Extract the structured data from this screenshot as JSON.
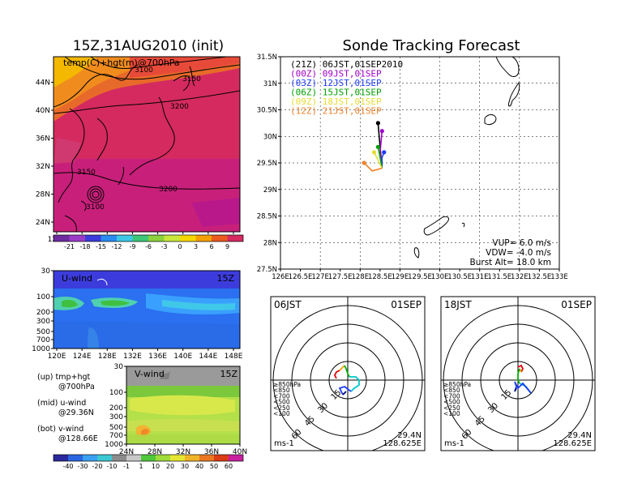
{
  "chart_data": [
    {
      "type": "heatmap",
      "title": "15Z,31AUG2010 (init)",
      "label": "temp(C)+hgt(m)@700hPa",
      "x_ticks": [
        "120E",
        "124E",
        "128E",
        "132E",
        "136E",
        "140E",
        "144E",
        "148E"
      ],
      "y_ticks": [
        "24N",
        "28N",
        "32N",
        "36N",
        "40N",
        "44N"
      ],
      "contours": [
        "3100",
        "3150",
        "3200",
        "3150",
        "3200",
        "3100"
      ],
      "colorbar": [
        "-21",
        "-18",
        "-15",
        "-12",
        "-9",
        "-6",
        "-3",
        "0",
        "3",
        "6",
        "9"
      ]
    },
    {
      "type": "heatmap",
      "label": "U-wind",
      "time": "15Z",
      "x_ticks": [
        "120E",
        "124E",
        "128E",
        "132E",
        "136E",
        "140E",
        "144E",
        "148E"
      ],
      "y_ticks": [
        "30",
        "100",
        "200",
        "300",
        "500",
        "700",
        "1000"
      ]
    },
    {
      "type": "heatmap",
      "label": "V-wind",
      "time": "15Z",
      "x_ticks": [
        "24N",
        "28N",
        "32N",
        "36N",
        "40N"
      ],
      "y_ticks": [
        "30",
        "100",
        "200",
        "300",
        "500",
        "700",
        "1000"
      ],
      "colorbar": [
        "-40",
        "-30",
        "-20",
        "-10",
        "-1",
        "1",
        "10",
        "20",
        "30",
        "40",
        "50",
        "60"
      ]
    },
    {
      "type": "line",
      "title": "Sonde Tracking Forecast",
      "x_ticks": [
        "126E",
        "126.5E",
        "127E",
        "127.5E",
        "128E",
        "128.5E",
        "129E",
        "129.5E",
        "130E",
        "130.5E",
        "131E",
        "131.5E",
        "132E",
        "132.5E",
        "133E"
      ],
      "y_ticks": [
        "27.5N",
        "28N",
        "28.5N",
        "29N",
        "29.5N",
        "30N",
        "30.5N",
        "31N",
        "31.5N"
      ],
      "xlim": [
        126,
        133
      ],
      "ylim": [
        27.5,
        31.5
      ],
      "series": [
        {
          "name": "(21Z)  06JST,01SEP2010",
          "color": "#000000",
          "points": [
            [
              128.55,
              29.4
            ],
            [
              128.5,
              29.8
            ],
            [
              128.45,
              30.25
            ]
          ]
        },
        {
          "name": "(00Z)  09JST,01SEP",
          "color": "#a000c8",
          "points": [
            [
              128.55,
              29.4
            ],
            [
              128.5,
              29.7
            ],
            [
              128.55,
              30.1
            ]
          ]
        },
        {
          "name": "(03Z)  12JST,01SEP",
          "color": "#1e3cff",
          "points": [
            [
              128.55,
              29.4
            ],
            [
              128.55,
              29.6
            ],
            [
              128.6,
              29.7
            ]
          ]
        },
        {
          "name": "(06Z)  15JST,01SEP",
          "color": "#00a000",
          "points": [
            [
              128.55,
              29.4
            ],
            [
              128.5,
              29.6
            ],
            [
              128.45,
              29.8
            ]
          ]
        },
        {
          "name": "(09Z)  18JST,01SEP",
          "color": "#e6dc32",
          "points": [
            [
              128.55,
              29.4
            ],
            [
              128.45,
              29.55
            ],
            [
              128.35,
              29.7
            ]
          ]
        },
        {
          "name": "(12Z)  21JST,01SEP",
          "color": "#f08228",
          "points": [
            [
              128.55,
              29.4
            ],
            [
              128.3,
              29.35
            ],
            [
              128.1,
              29.5
            ]
          ]
        }
      ],
      "annotations": [
        "VUP=  6.0  m/s",
        "VDW= -4.0  m/s",
        "Burst Alt=  18.0  km"
      ]
    },
    {
      "type": "line",
      "title_left": "06JST",
      "title_right": "01SEP",
      "ring_labels": [
        "15",
        "30",
        "45",
        "60"
      ],
      "legend": [
        {
          "label": "≥850hPa",
          "color": "#e00000"
        },
        {
          "label": "<850",
          "color": "#f0a000"
        },
        {
          "label": "<700",
          "color": "#00b000"
        },
        {
          "label": "<500",
          "color": "#00c8c8"
        },
        {
          "label": "<250",
          "color": "#1e3cff"
        },
        {
          "label": "<100",
          "color": "#000080"
        }
      ],
      "unit": "ms-1",
      "location": [
        "29.4N",
        "128.625E"
      ]
    },
    {
      "type": "line",
      "title_left": "18JST",
      "title_right": "01SEP",
      "ring_labels": [
        "15",
        "30",
        "45",
        "60"
      ],
      "legend": [
        {
          "label": "≥850hPa",
          "color": "#e00000"
        },
        {
          "label": "<850",
          "color": "#f0a000"
        },
        {
          "label": "<700",
          "color": "#00b000"
        },
        {
          "label": "<500",
          "color": "#00c8c8"
        },
        {
          "label": "<250",
          "color": "#1e3cff"
        },
        {
          "label": "<100",
          "color": "#000080"
        }
      ],
      "unit": "ms-1",
      "location": [
        "29.4N",
        "128.625E"
      ]
    }
  ],
  "side_notes": [
    {
      "label": "(up)  tmp+hgt",
      "sub": "@700hPa"
    },
    {
      "label": "(mid)  u-wind",
      "sub": "@29.36N"
    },
    {
      "label": "(bot)  v-wind",
      "sub": "@128.66E"
    }
  ]
}
